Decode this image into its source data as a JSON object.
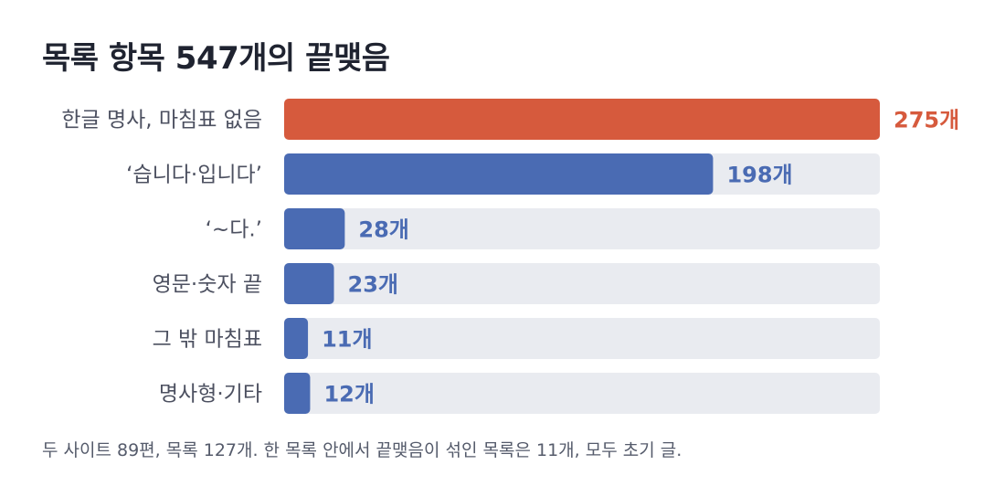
{
  "title": "목록 항목 547개의 끝맺음",
  "footnote": "두 사이트 89편, 목록 127개. 한 목록 안에서 끝맺음이 섞인 목록은 11개, 모두 초기 글.",
  "colors": {
    "highlight": "#d65a3d",
    "bar": "#4a6bb3",
    "track": "#e9ebf0",
    "category_text": "#4c5060",
    "title_text": "#1f2330"
  },
  "chart_data": {
    "type": "bar",
    "orientation": "horizontal",
    "categories": [
      "한글 명사, 마침표 없음",
      "‘습니다·입니다’",
      "‘~다.’",
      "영문·숫자 끝",
      "그 밖 마침표",
      "명사형·기타"
    ],
    "values": [
      275,
      198,
      28,
      23,
      11,
      12
    ],
    "value_labels": [
      "275개",
      "198개",
      "28개",
      "23개",
      "11개",
      "12개"
    ],
    "highlight_index": 0,
    "xlim": [
      0,
      275
    ],
    "grid": false,
    "legend": "none"
  }
}
